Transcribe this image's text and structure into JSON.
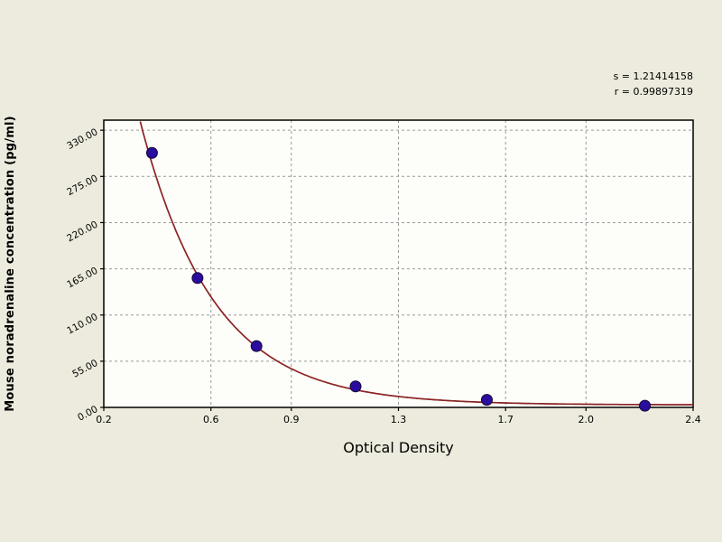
{
  "figure": {
    "stats": {
      "line1": "s = 1.21414158",
      "line2": "r = 0.99897319"
    }
  },
  "chart_data": {
    "type": "scatter",
    "title": "",
    "xlabel": "Optical Density",
    "ylabel": "Mouse noradrenaline concentration (pg/ml)",
    "xlim": [
      0.2,
      2.4
    ],
    "ylim": [
      0,
      330
    ],
    "xticks": [
      0.2,
      0.6,
      0.9,
      1.3,
      1.7,
      2.0,
      2.4
    ],
    "xtick_labels": [
      "0.2",
      "0.6",
      "0.9",
      "1.3",
      "1.7",
      "2.0",
      "2.4"
    ],
    "yticks": [
      0,
      55,
      110,
      165,
      220,
      275,
      330
    ],
    "ytick_labels": [
      "0.00",
      "55.00",
      "110.00",
      "165.00",
      "220.00",
      "275.00",
      "330.00"
    ],
    "grid": true,
    "legend": false,
    "points": [
      [
        0.38,
        303
      ],
      [
        0.55,
        154
      ],
      [
        0.77,
        73
      ],
      [
        1.14,
        25
      ],
      [
        1.63,
        9
      ],
      [
        2.22,
        2
      ]
    ],
    "fit_curve": {
      "model": "exponential_decay",
      "formula": "y = a*exp(-b*x) + c",
      "a": 1150,
      "b": 3.65,
      "c": 3
    },
    "colors": {
      "background": "#ecebdd",
      "plot_background": "#fdfdf9",
      "grid": "#9a9a9a",
      "curve": "#8b2324",
      "point_fill": "#2a0d9e",
      "point_edge": "#140636",
      "axis": "#000000"
    },
    "layout": {
      "y_draw_max": 342,
      "grid_dash": "3 3",
      "legend_position": "none"
    }
  }
}
